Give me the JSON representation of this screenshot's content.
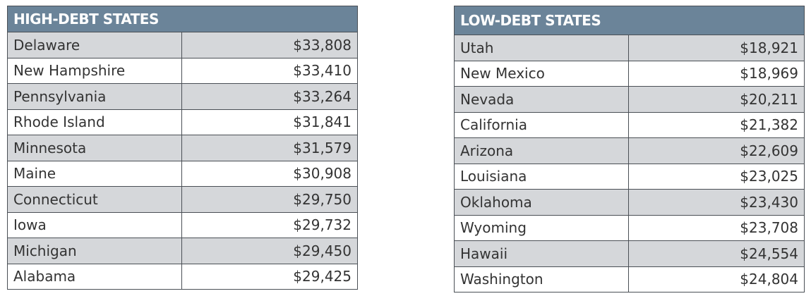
{
  "tables": [
    {
      "title": "HIGH-DEBT STATES",
      "rows": [
        [
          "Delaware",
          "$33,808"
        ],
        [
          "New Hampshire",
          "$33,410"
        ],
        [
          "Pennsylvania",
          "$33,264"
        ],
        [
          "Rhode Island",
          "$31,841"
        ],
        [
          "Minnesota",
          "$31,579"
        ],
        [
          "Maine",
          "$30,908"
        ],
        [
          "Connecticut",
          "$29,750"
        ],
        [
          "Iowa",
          "$29,732"
        ],
        [
          "Michigan",
          "$29,450"
        ],
        [
          "Alabama",
          "$29,425"
        ]
      ]
    },
    {
      "title": "LOW-DEBT STATES",
      "rows": [
        [
          "Utah",
          "$18,921"
        ],
        [
          "New Mexico",
          "$18,969"
        ],
        [
          "Nevada",
          "$20,211"
        ],
        [
          "California",
          "$21,382"
        ],
        [
          "Arizona",
          "$22,609"
        ],
        [
          "Louisiana",
          "$23,025"
        ],
        [
          "Oklahoma",
          "$23,430"
        ],
        [
          "Wyoming",
          "$23,708"
        ],
        [
          "Hawaii",
          "$24,554"
        ],
        [
          "Washington",
          "$24,804"
        ]
      ]
    }
  ]
}
